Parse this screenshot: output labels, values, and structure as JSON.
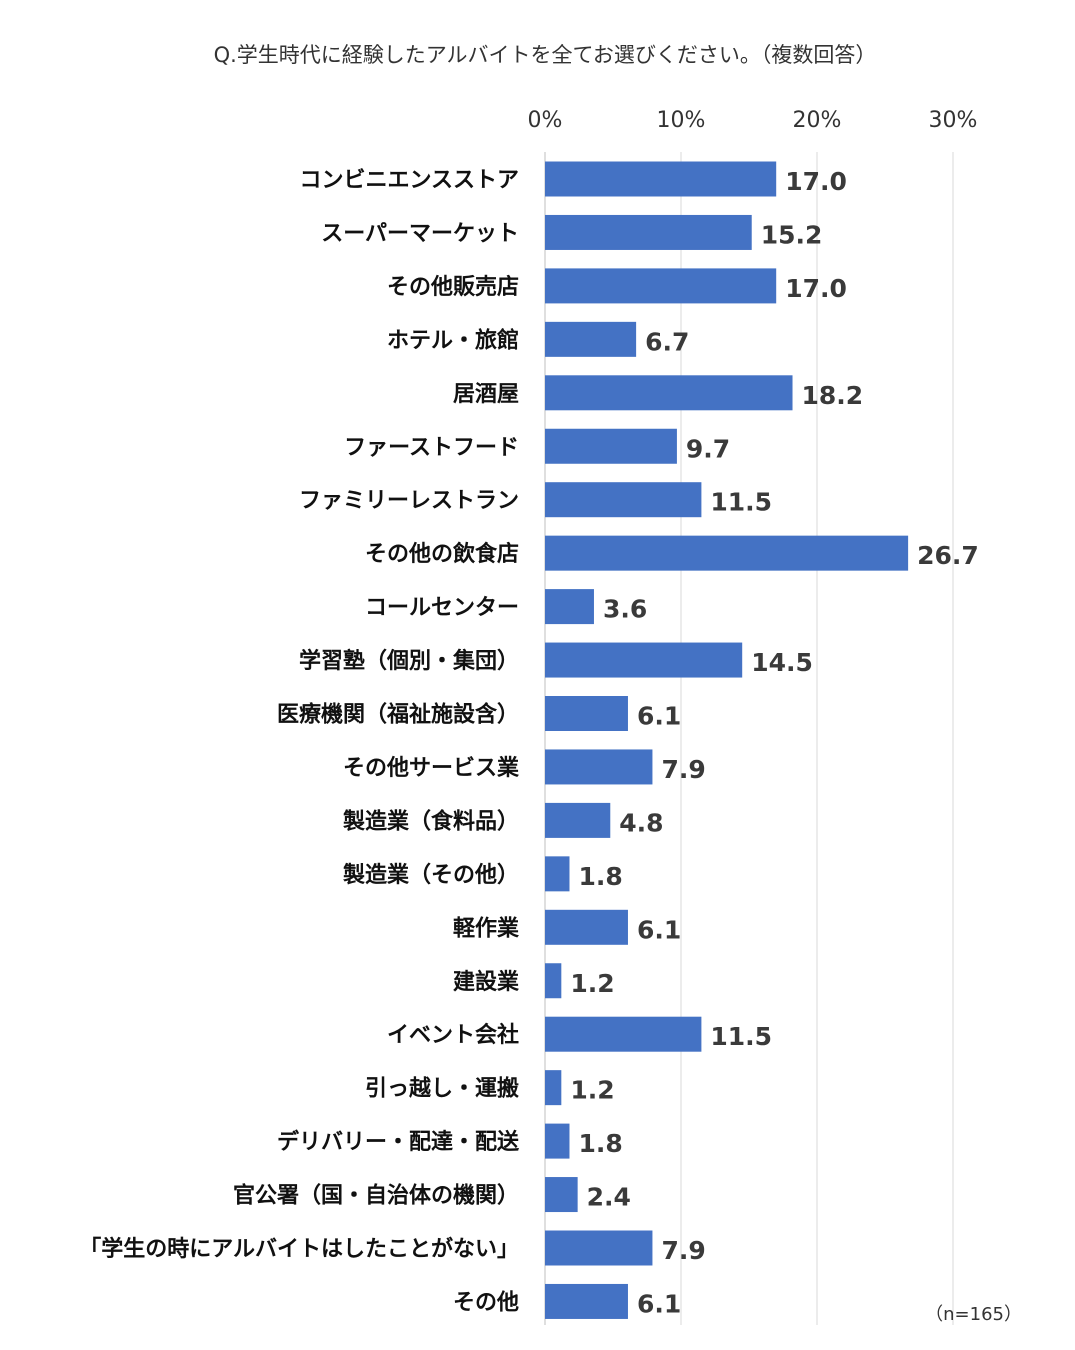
{
  "chart_data": {
    "type": "bar",
    "orientation": "horizontal",
    "title": "Q.学生時代に経験したアルバイトを全てお選びください。（複数回答）",
    "xlim": [
      0,
      30
    ],
    "x_ticks": [
      "0%",
      "10%",
      "20%",
      "30%"
    ],
    "x_tick_values": [
      0,
      10,
      20,
      30
    ],
    "grid": true,
    "bar_color": "#4472C4",
    "note": "（n=165）",
    "categories": [
      "コンビニエンスストア",
      "スーパーマーケット",
      "その他販売店",
      "ホテル・旅館",
      "居酒屋",
      "ファーストフード",
      "ファミリーレストラン",
      "その他の飲食店",
      "コールセンター",
      "学習塾（個別・集団）",
      "医療機関（福祉施設含）",
      "その他サービス業",
      "製造業（食料品）",
      "製造業（その他）",
      "軽作業",
      "建設業",
      "イベント会社",
      "引っ越し・運搬",
      "デリバリー・配達・配送",
      "官公署（国・自治体の機関）",
      "「学生の時にアルバイトはしたことがない」",
      "その他"
    ],
    "values": [
      17.0,
      15.2,
      17.0,
      6.7,
      18.2,
      9.7,
      11.5,
      26.7,
      3.6,
      14.5,
      6.1,
      7.9,
      4.8,
      1.8,
      6.1,
      1.2,
      11.5,
      1.2,
      1.8,
      2.4,
      7.9,
      6.1
    ],
    "value_labels": [
      "17.0",
      "15.2",
      "17.0",
      "6.7",
      "18.2",
      "9.7",
      "11.5",
      "26.7",
      "3.6",
      "14.5",
      "6.1",
      "7.9",
      "4.8",
      "1.8",
      "6.1",
      "1.2",
      "11.5",
      "1.2",
      "1.8",
      "2.4",
      "7.9",
      "6.1"
    ]
  }
}
